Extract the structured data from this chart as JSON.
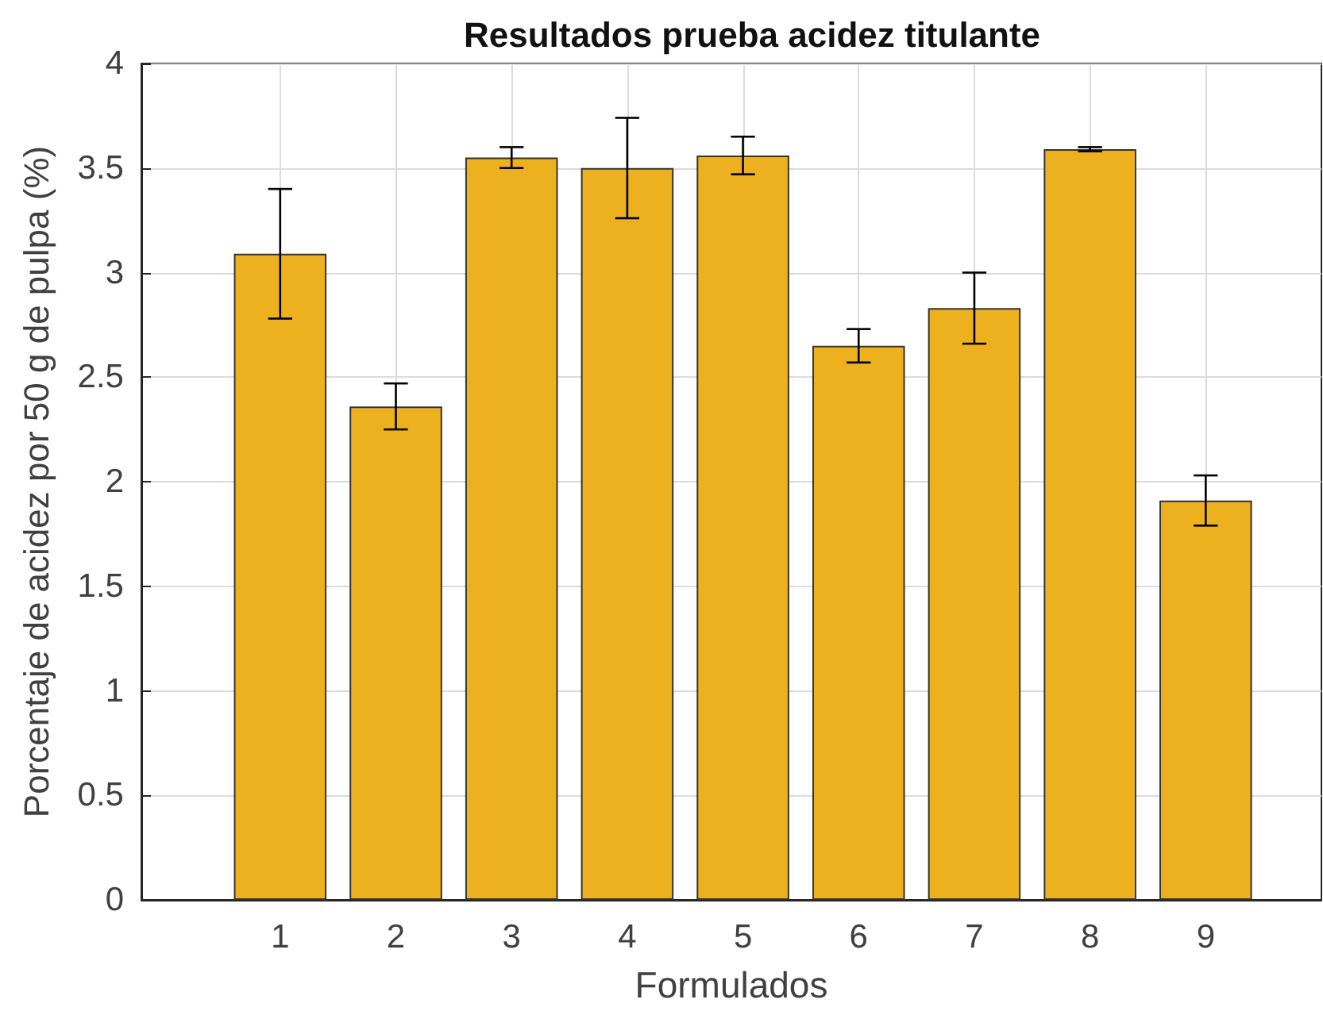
{
  "chart_data": {
    "type": "bar",
    "title": "Resultados prueba acidez titulante",
    "xlabel": "Formulados",
    "ylabel": "Porcentaje de acidez por 50 g de pulpa (%)",
    "x": [
      1,
      2,
      3,
      4,
      5,
      6,
      7,
      8,
      9
    ],
    "values": [
      3.09,
      2.36,
      3.55,
      3.5,
      3.56,
      2.65,
      2.83,
      3.59,
      1.91
    ],
    "errors": [
      0.31,
      0.11,
      0.05,
      0.24,
      0.09,
      0.08,
      0.17,
      0.01,
      0.12
    ],
    "color": "#edb120",
    "xlim": [
      -0.2,
      10
    ],
    "xticks": [
      1,
      2,
      3,
      4,
      5,
      6,
      7,
      8,
      9
    ],
    "ylim": [
      0,
      4
    ],
    "yticks": [
      0,
      0.5,
      1,
      1.5,
      2,
      2.5,
      3,
      3.5,
      4
    ],
    "grid": true
  }
}
